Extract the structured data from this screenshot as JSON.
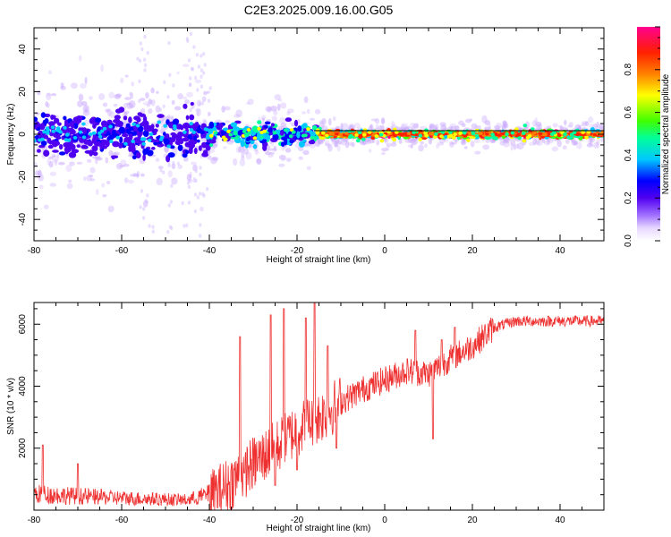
{
  "title": "C2E3.2025.009.16.00.G05",
  "colors": {
    "snr_line": "#ee3030",
    "constant_line": "#000000",
    "colorscale": [
      "#e6d7ff",
      "#a070ff",
      "#5000f0",
      "#0000ff",
      "#00c8ff",
      "#00ff9a",
      "#40ff00",
      "#ffff00",
      "#ff8000",
      "#ff2000",
      "#ff0090"
    ]
  },
  "chart_data": [
    {
      "type": "heatmap",
      "title": "",
      "xlabel": "Height of straight line (km)",
      "ylabel": "Frequency (Hz)",
      "xlim": [
        -80,
        50
      ],
      "ylim": [
        -50,
        50
      ],
      "xticks": [
        -80,
        -60,
        -40,
        -20,
        0,
        20,
        40
      ],
      "yticks": [
        -40,
        -20,
        0,
        20,
        40
      ],
      "colorbar": {
        "label": "Normalized spectral amplitude",
        "range": [
          0,
          1
        ],
        "ticks": [
          0.0,
          0.2,
          0.4,
          0.6,
          0.8
        ]
      },
      "features": [
        {
          "x_range": [
            -80,
            -40
          ],
          "center_hz": 0,
          "spread_hz": 8,
          "peak_amplitude": 0.3,
          "description": "broad noisy energy"
        },
        {
          "x_range": [
            -40,
            -15
          ],
          "center_hz": 0,
          "spread_hz": 4,
          "peak_amplitude": 0.5,
          "description": "narrowing energy"
        },
        {
          "x_range": [
            -15,
            50
          ],
          "center_hz": 0,
          "spread_hz": 1,
          "peak_amplitude": 1.0,
          "description": "concentrated peak at 0 Hz"
        }
      ]
    },
    {
      "type": "line",
      "title": "",
      "xlabel": "Height of straight line (km)",
      "ylabel": "SNR (10 * v/v)",
      "xlim": [
        -80,
        50
      ],
      "ylim": [
        0,
        6700
      ],
      "xticks": [
        -80,
        -60,
        -40,
        -20,
        0,
        20,
        40
      ],
      "yticks": [
        2000,
        4000,
        6000
      ],
      "envelope": [
        {
          "x": -80,
          "y": 400
        },
        {
          "x": -60,
          "y": 300
        },
        {
          "x": -45,
          "y": 250
        },
        {
          "x": -40,
          "y": 400
        },
        {
          "x": -35,
          "y": 900
        },
        {
          "x": -30,
          "y": 1500
        },
        {
          "x": -25,
          "y": 2000
        },
        {
          "x": -20,
          "y": 2600
        },
        {
          "x": -15,
          "y": 3000
        },
        {
          "x": -10,
          "y": 3500
        },
        {
          "x": -5,
          "y": 3900
        },
        {
          "x": 0,
          "y": 4200
        },
        {
          "x": 5,
          "y": 4500
        },
        {
          "x": 10,
          "y": 4400
        },
        {
          "x": 15,
          "y": 4900
        },
        {
          "x": 20,
          "y": 5300
        },
        {
          "x": 25,
          "y": 5900
        },
        {
          "x": 30,
          "y": 6100
        },
        {
          "x": 40,
          "y": 6100
        },
        {
          "x": 50,
          "y": 6100
        }
      ],
      "spikes": [
        {
          "x": -78,
          "y": 2100
        },
        {
          "x": -70,
          "y": 1500
        },
        {
          "x": -33,
          "y": 5600
        },
        {
          "x": -32,
          "y": 1200
        },
        {
          "x": -26,
          "y": 6300
        },
        {
          "x": -25,
          "y": 800
        },
        {
          "x": -23,
          "y": 6500
        },
        {
          "x": -20,
          "y": 1300
        },
        {
          "x": -18,
          "y": 6200
        },
        {
          "x": -16,
          "y": 6700
        },
        {
          "x": -13,
          "y": 5300
        },
        {
          "x": -11,
          "y": 2000
        },
        {
          "x": 7,
          "y": 5800
        },
        {
          "x": 11,
          "y": 2300
        },
        {
          "x": 13,
          "y": 5500
        },
        {
          "x": 16,
          "y": 5900
        }
      ]
    }
  ]
}
